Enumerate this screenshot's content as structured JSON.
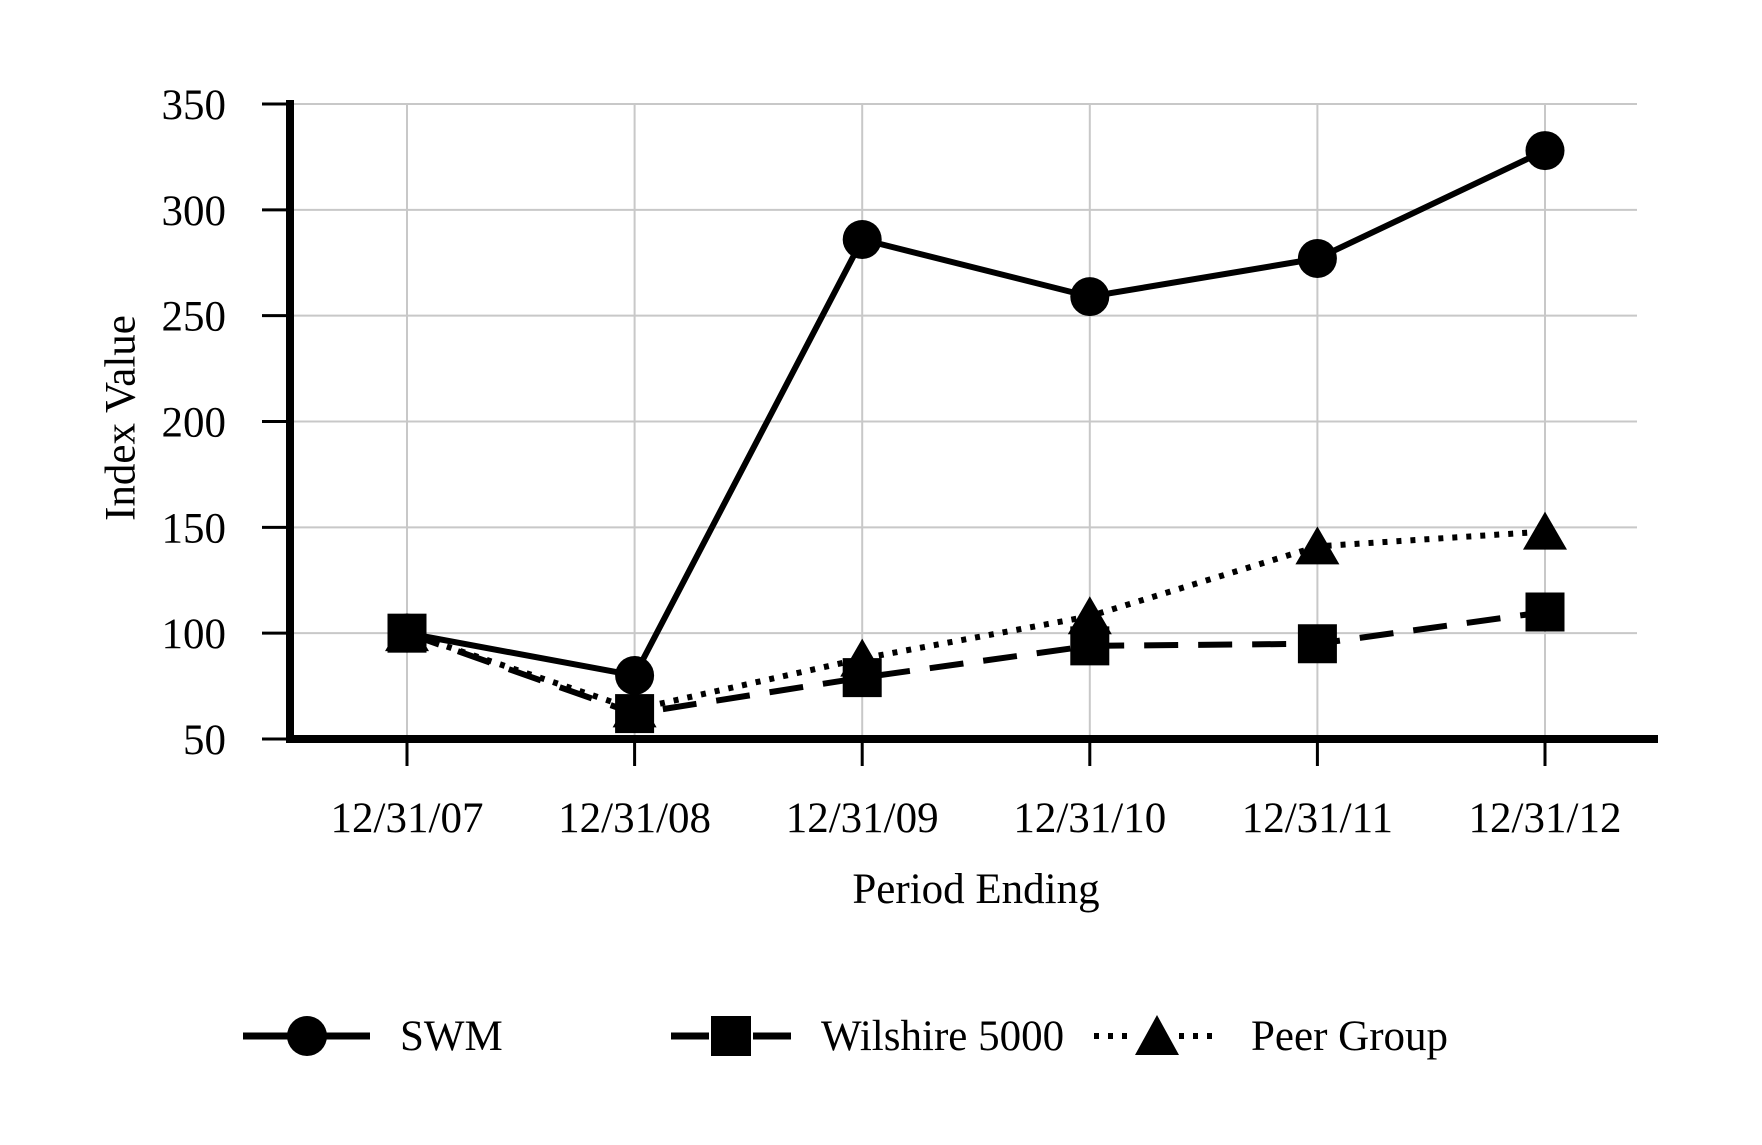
{
  "chart_data": {
    "type": "line",
    "title": "",
    "xlabel": "Period Ending",
    "ylabel": "Index Value",
    "x_categories": [
      "12/31/07",
      "12/31/08",
      "12/31/09",
      "12/31/10",
      "12/31/11",
      "12/31/12"
    ],
    "y_ticks": [
      50,
      100,
      150,
      200,
      250,
      300,
      350
    ],
    "ylim": [
      50,
      350
    ],
    "grid": true,
    "legend_position": "bottom",
    "series": [
      {
        "name": "SWM",
        "marker": "circle",
        "line_style": "solid",
        "values": [
          100,
          80,
          286,
          259,
          277,
          328
        ]
      },
      {
        "name": "Wilshire 5000",
        "marker": "square",
        "line_style": "dashed",
        "values": [
          100,
          62,
          79,
          94,
          95,
          110
        ]
      },
      {
        "name": "Peer Group",
        "marker": "triangle",
        "line_style": "dotted",
        "values": [
          100,
          64,
          88,
          108,
          141,
          148
        ]
      }
    ],
    "colors": {
      "series": "#000000",
      "grid": "#c8c8c8",
      "axis": "#000000",
      "background": "#ffffff"
    }
  }
}
